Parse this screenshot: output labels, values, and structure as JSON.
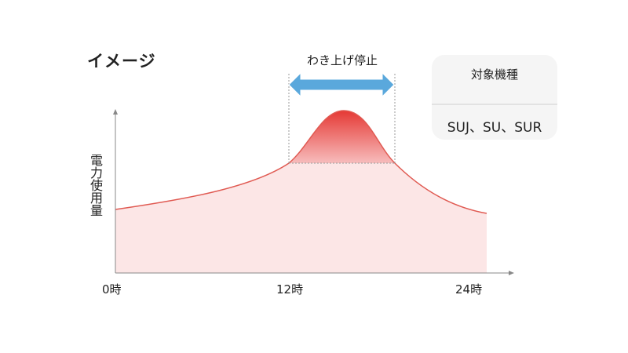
{
  "title": "イメージ",
  "annotation": "わき上げ停止",
  "y_axis_label": "電力使用量",
  "x_ticks": [
    "0時",
    "12時",
    "24時"
  ],
  "models_box": {
    "header": "対象機種",
    "value": "SUJ、SU、SUR"
  },
  "colors": {
    "curve": "#e05a52",
    "fill": "#fce6e6",
    "peak": "#e53935",
    "arrow": "#5aa8dc"
  }
}
